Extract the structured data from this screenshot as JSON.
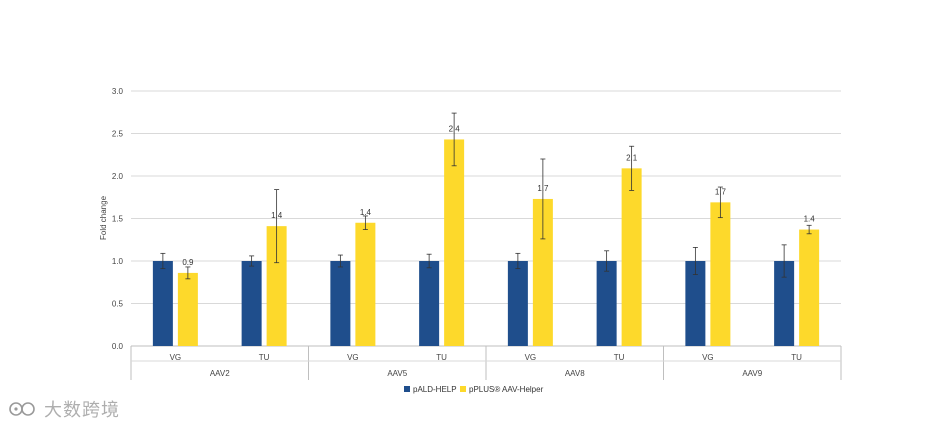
{
  "chart_data": {
    "type": "bar",
    "title": "",
    "xlabel": "",
    "ylabel": "Fold change",
    "ylim": [
      0,
      3.0
    ],
    "yticks": [
      "0.0",
      "0.5",
      "1.0",
      "1.5",
      "2.0",
      "2.5",
      "3.0"
    ],
    "grid": true,
    "legend_position": "bottom",
    "groups": [
      {
        "name": "AAV2",
        "categories": [
          "VG",
          "TU"
        ]
      },
      {
        "name": "AAV5",
        "categories": [
          "VG",
          "TU"
        ]
      },
      {
        "name": "AAV8",
        "categories": [
          "VG",
          "TU"
        ]
      },
      {
        "name": "AAV9",
        "categories": [
          "VG",
          "TU"
        ]
      }
    ],
    "series": [
      {
        "name": "pALD-HELP",
        "color": "#1f4e8c",
        "values": [
          1.0,
          1.0,
          1.0,
          1.0,
          1.0,
          1.0,
          1.0,
          1.0
        ],
        "errors": [
          0.09,
          0.06,
          0.07,
          0.08,
          0.09,
          0.12,
          0.16,
          0.19
        ],
        "labels": [
          "",
          "",
          "",
          "",
          "",
          "",
          "",
          ""
        ]
      },
      {
        "name": "pPLUS® AAV-Helper",
        "color": "#fdd92b",
        "values": [
          0.86,
          1.41,
          1.45,
          2.43,
          1.73,
          2.09,
          1.69,
          1.37
        ],
        "errors": [
          0.07,
          0.43,
          0.08,
          0.31,
          0.47,
          0.26,
          0.18,
          0.05
        ],
        "labels": [
          "0.9",
          "1.4",
          "1.4",
          "2.4",
          "1.7",
          "2.1",
          "1.7",
          "1.4"
        ]
      }
    ]
  },
  "watermark": {
    "text": "大数跨境"
  }
}
